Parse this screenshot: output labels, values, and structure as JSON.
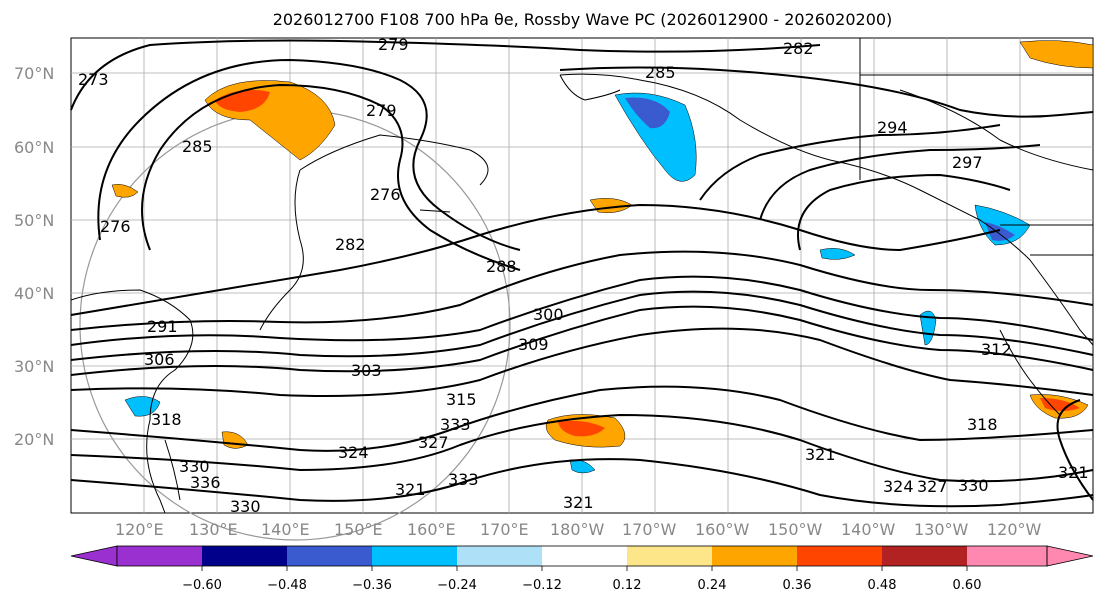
{
  "title": "2026012700 F108 700 hPa θe, Rossby Wave PC (2026012900 - 2026020200)",
  "map": {
    "lat_labels": [
      "70°N",
      "60°N",
      "50°N",
      "40°N",
      "30°N",
      "20°N"
    ],
    "lon_labels": [
      "120°E",
      "130°E",
      "140°E",
      "150°E",
      "160°E",
      "170°E",
      "180°W",
      "170°W",
      "160°W",
      "150°W",
      "140°W",
      "130°W",
      "120°W"
    ],
    "contour_labels": [
      "279",
      "282",
      "285",
      "273",
      "279",
      "294",
      "285",
      "297",
      "276",
      "276",
      "282",
      "288",
      "300",
      "291",
      "309",
      "303",
      "312",
      "306",
      "315",
      "318",
      "318",
      "324",
      "321",
      "327",
      "333",
      "330",
      "336",
      "333",
      "321",
      "330",
      "324",
      "327",
      "321",
      "330",
      "321"
    ]
  },
  "colorbar": {
    "ticks": [
      "−0.60",
      "−0.48",
      "−0.36",
      "−0.24",
      "−0.12",
      "0.12",
      "0.24",
      "0.36",
      "0.48",
      "0.60"
    ],
    "colors": [
      "#9b30d0",
      "#00008b",
      "#3a5bd0",
      "#00bfff",
      "#aee0f8",
      "#ffffff",
      "#fde68a",
      "#ffa500",
      "#ff4500",
      "#b22222",
      "#ff88b0"
    ]
  }
}
